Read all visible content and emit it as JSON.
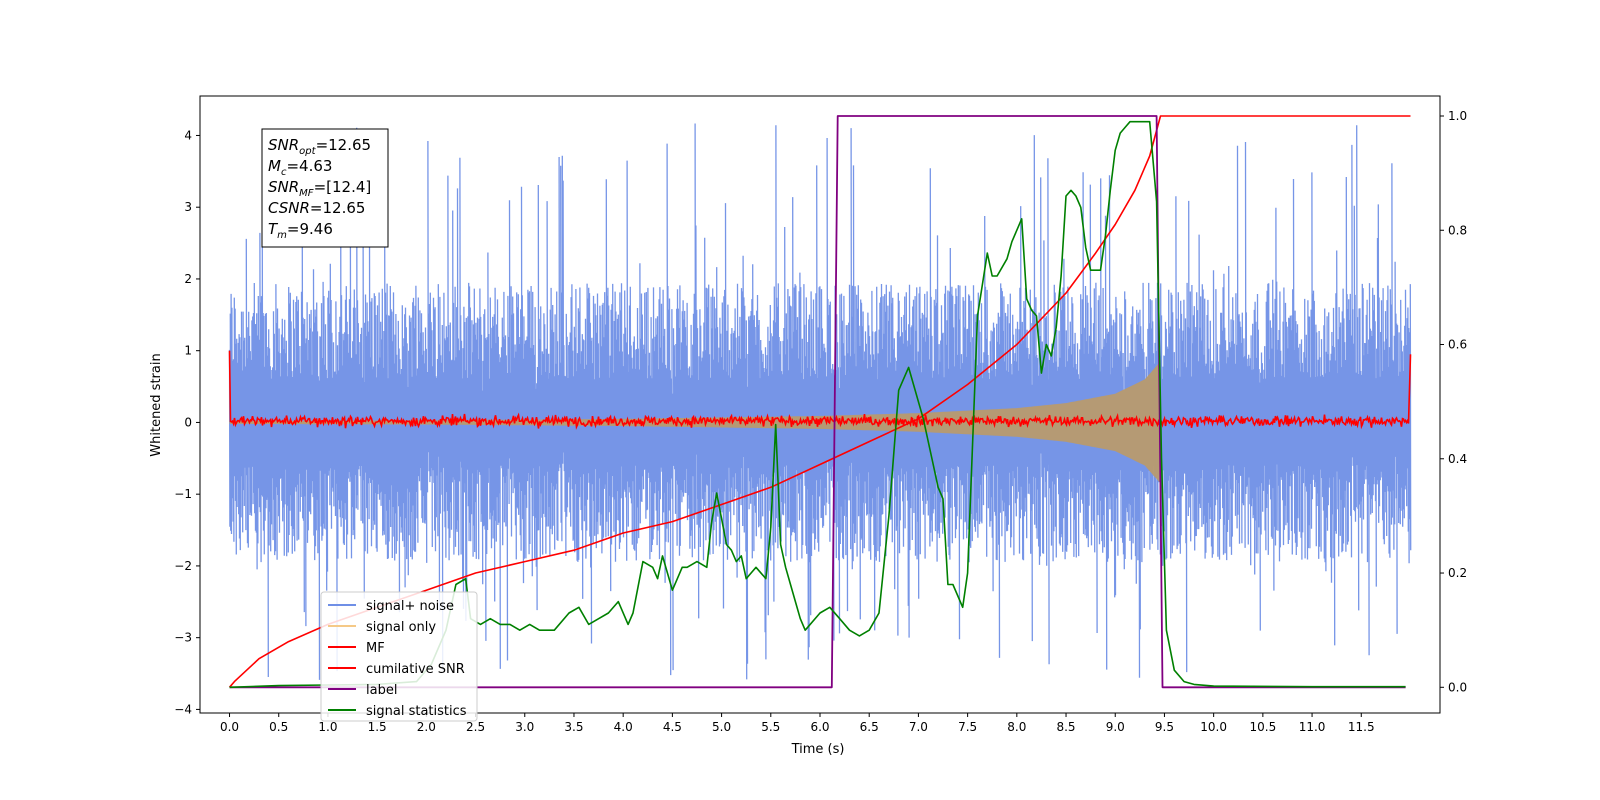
{
  "chart_data": {
    "type": "line",
    "title": "",
    "xlabel": "Time (s)",
    "ylabel": "Whitened strain",
    "y2label": "",
    "xlim": [
      -0.3,
      12.3
    ],
    "ylim": [
      -4.05,
      4.55
    ],
    "y2lim": [
      -0.045,
      1.035
    ],
    "xticks": [
      0.0,
      0.5,
      1.0,
      1.5,
      2.0,
      2.5,
      3.0,
      3.5,
      4.0,
      4.5,
      5.0,
      5.5,
      6.0,
      6.5,
      7.0,
      7.5,
      8.0,
      8.5,
      9.0,
      9.5,
      10.0,
      10.5,
      11.0,
      11.5
    ],
    "xtick_labels": [
      "0.0",
      "0.5",
      "1.0",
      "1.5",
      "2.0",
      "2.5",
      "3.0",
      "3.5",
      "4.0",
      "4.5",
      "5.0",
      "5.5",
      "6.0",
      "6.5",
      "7.0",
      "7.5",
      "8.0",
      "8.5",
      "9.0",
      "9.5",
      "10.0",
      "10.5",
      "11.0",
      "11.5"
    ],
    "yticks": [
      -4,
      -3,
      -2,
      -1,
      0,
      1,
      2,
      3,
      4
    ],
    "ytick_labels": [
      "−4",
      "−3",
      "−2",
      "−1",
      "0",
      "1",
      "2",
      "3",
      "4"
    ],
    "y2ticks": [
      0.0,
      0.2,
      0.4,
      0.6,
      0.8,
      1.0
    ],
    "y2tick_labels": [
      "0.0",
      "0.2",
      "0.4",
      "0.6",
      "0.8",
      "1.0"
    ],
    "grid": false,
    "legend_position": "bottom-left",
    "annotation": [
      {
        "base": "SNR",
        "sub": "opt",
        "value": "=12.65"
      },
      {
        "base": "M",
        "sub": "c",
        "value": "=4.63"
      },
      {
        "base": "SNR",
        "sub": "MF",
        "value": "=[12.4]"
      },
      {
        "base": "CSNR",
        "sub": "",
        "value": "=12.65"
      },
      {
        "base": "T",
        "sub": "m",
        "value": "=9.46"
      }
    ],
    "series": [
      {
        "name": "signal+ noise",
        "color": "#6f8fe6",
        "axis": "left",
        "x_range": [
          0.0,
          12.0
        ],
        "typical_band": [
          -1.5,
          1.5
        ],
        "peak_range": [
          -3.6,
          4.2
        ]
      },
      {
        "name": "signal only",
        "color": "#f5c987",
        "axis": "left",
        "x_range": [
          0.0,
          9.46
        ],
        "envelope": {
          "x": [
            0.0,
            2.0,
            4.0,
            6.0,
            7.0,
            8.0,
            8.5,
            9.0,
            9.3,
            9.46
          ],
          "amp": [
            0.02,
            0.03,
            0.05,
            0.09,
            0.13,
            0.2,
            0.27,
            0.4,
            0.6,
            0.85
          ]
        }
      },
      {
        "name": "MF",
        "color": "#ff0000",
        "axis": "left",
        "x_range": [
          0.0,
          12.0
        ],
        "typical_band": [
          -0.1,
          0.15
        ],
        "edge_values": [
          1.0,
          0.95
        ]
      },
      {
        "name": "cumilative SNR",
        "color": "#ff0000",
        "axis": "right",
        "x": [
          0.0,
          0.05,
          0.3,
          0.6,
          1.0,
          1.5,
          2.0,
          2.5,
          3.0,
          3.5,
          4.0,
          4.5,
          5.0,
          5.5,
          6.0,
          6.5,
          7.0,
          7.5,
          8.0,
          8.5,
          8.8,
          9.0,
          9.2,
          9.35,
          9.46,
          9.6,
          10.0,
          11.0,
          12.0
        ],
        "values": [
          0.0,
          0.01,
          0.05,
          0.08,
          0.11,
          0.14,
          0.17,
          0.2,
          0.22,
          0.24,
          0.27,
          0.29,
          0.32,
          0.35,
          0.39,
          0.43,
          0.47,
          0.53,
          0.6,
          0.69,
          0.76,
          0.81,
          0.87,
          0.93,
          1.0,
          1.0,
          1.0,
          1.0,
          1.0
        ]
      },
      {
        "name": "label",
        "color": "#800080",
        "axis": "right",
        "x": [
          0.0,
          6.12,
          6.18,
          9.42,
          9.48,
          11.95
        ],
        "values": [
          0.0,
          0.0,
          1.0,
          1.0,
          0.0,
          0.0
        ]
      },
      {
        "name": "signal statistics",
        "color": "#008000",
        "axis": "right",
        "x": [
          0.0,
          0.5,
          1.0,
          1.5,
          1.9,
          2.05,
          2.2,
          2.3,
          2.4,
          2.45,
          2.55,
          2.65,
          2.75,
          2.85,
          2.95,
          3.05,
          3.15,
          3.3,
          3.45,
          3.55,
          3.65,
          3.75,
          3.85,
          3.95,
          4.05,
          4.1,
          4.2,
          4.3,
          4.35,
          4.4,
          4.5,
          4.6,
          4.65,
          4.75,
          4.85,
          4.9,
          4.95,
          5.05,
          5.1,
          5.15,
          5.2,
          5.25,
          5.3,
          5.35,
          5.45,
          5.5,
          5.55,
          5.6,
          5.65,
          5.7,
          5.75,
          5.8,
          5.85,
          6.0,
          6.1,
          6.2,
          6.3,
          6.4,
          6.5,
          6.6,
          6.7,
          6.8,
          6.9,
          6.95,
          7.05,
          7.15,
          7.2,
          7.25,
          7.3,
          7.35,
          7.45,
          7.5,
          7.6,
          7.7,
          7.75,
          7.8,
          7.9,
          7.95,
          8.05,
          8.1,
          8.15,
          8.2,
          8.25,
          8.3,
          8.35,
          8.4,
          8.45,
          8.5,
          8.55,
          8.6,
          8.65,
          8.7,
          8.75,
          8.8,
          8.85,
          8.9,
          8.95,
          9.0,
          9.05,
          9.1,
          9.15,
          9.25,
          9.35,
          9.42,
          9.47,
          9.52,
          9.6,
          9.7,
          9.8,
          10.0,
          11.0,
          11.95
        ],
        "values": [
          0.0,
          0.003,
          0.004,
          0.005,
          0.01,
          0.04,
          0.1,
          0.18,
          0.19,
          0.12,
          0.11,
          0.12,
          0.11,
          0.11,
          0.1,
          0.11,
          0.1,
          0.1,
          0.13,
          0.14,
          0.11,
          0.12,
          0.13,
          0.15,
          0.11,
          0.13,
          0.22,
          0.21,
          0.19,
          0.23,
          0.17,
          0.21,
          0.21,
          0.22,
          0.21,
          0.29,
          0.34,
          0.25,
          0.24,
          0.22,
          0.23,
          0.19,
          0.2,
          0.21,
          0.19,
          0.28,
          0.46,
          0.25,
          0.21,
          0.18,
          0.15,
          0.12,
          0.1,
          0.13,
          0.14,
          0.12,
          0.1,
          0.09,
          0.1,
          0.13,
          0.3,
          0.52,
          0.56,
          0.53,
          0.47,
          0.39,
          0.35,
          0.33,
          0.18,
          0.18,
          0.14,
          0.2,
          0.65,
          0.76,
          0.72,
          0.72,
          0.75,
          0.78,
          0.82,
          0.68,
          0.66,
          0.65,
          0.55,
          0.6,
          0.58,
          0.63,
          0.72,
          0.86,
          0.87,
          0.86,
          0.84,
          0.77,
          0.73,
          0.73,
          0.73,
          0.79,
          0.87,
          0.94,
          0.97,
          0.98,
          0.99,
          0.99,
          0.99,
          0.85,
          0.4,
          0.1,
          0.03,
          0.01,
          0.005,
          0.002,
          0.001,
          0.001
        ]
      }
    ]
  }
}
